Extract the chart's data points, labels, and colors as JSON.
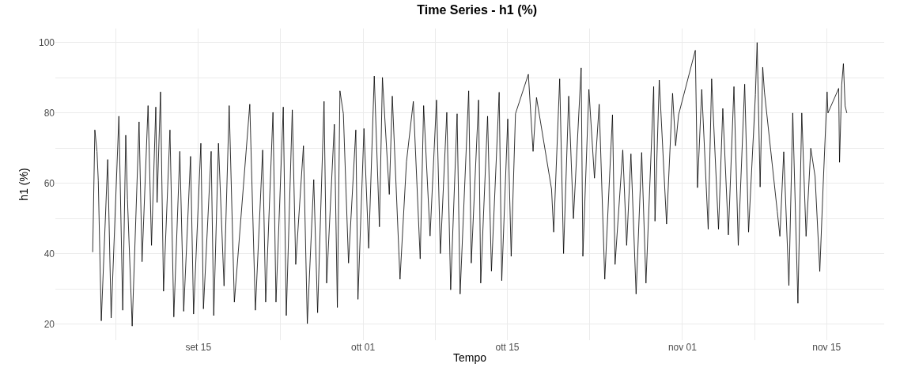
{
  "chart_data": {
    "type": "line",
    "title": "Time Series - h1 (%)",
    "xlabel": "Tempo",
    "ylabel": "h1 (%)",
    "color": "#000000",
    "grid": true,
    "xlim": [
      "--09-01T03:00",
      "--11-20T14:00"
    ],
    "xticks": [
      {
        "value": "--09-07",
        "label": null
      },
      {
        "value": "--09-15",
        "label": "set 15"
      },
      {
        "value": "--09-23",
        "label": null
      },
      {
        "value": "--10-01",
        "label": "ott 01"
      },
      {
        "value": "--10-08",
        "label": null
      },
      {
        "value": "--10-15",
        "label": "ott 15"
      },
      {
        "value": "--10-23",
        "label": null
      },
      {
        "value": "--11-01",
        "label": "nov 01"
      },
      {
        "value": "--11-08",
        "label": null
      },
      {
        "value": "--11-15",
        "label": "nov 15"
      }
    ],
    "ylim": [
      15.5,
      104
    ],
    "yticks": [
      20,
      {
        "value": 30,
        "label": null
      },
      40,
      {
        "value": 50,
        "label": null
      },
      60,
      {
        "value": 70,
        "label": null
      },
      80,
      {
        "value": 90,
        "label": null
      },
      100
    ],
    "x": [
      "--09-04T18:00",
      "--09-04T23:00",
      "--09-05T04:00",
      "--09-05T07:00",
      "--09-05T14:00",
      "--09-06T05:00",
      "--09-06T13:00",
      "--09-07T07:00",
      "--09-07T16:00",
      "--09-07T23:00",
      "--09-08T03:00",
      "--09-08T14:00",
      "--09-09T06:00",
      "--09-09T13:00",
      "--09-10T03:00",
      "--09-10T11:00",
      "--09-10T21:00",
      "--09-11T00:00",
      "--09-11T08:00",
      "--09-11T15:00",
      "--09-12T06:00",
      "--09-12T15:00",
      "--09-13T05:00",
      "--09-13T14:00",
      "--09-14T06:00",
      "--09-14T13:00",
      "--09-15T06:00",
      "--09-15T12:00",
      "--09-16T06:00",
      "--09-16T12:00",
      "--09-16T23:00",
      "--09-17T12:00",
      "--09-18T00:00",
      "--09-18T12:00",
      "--09-20T00:00",
      "--09-20T13:00",
      "--09-21T06:00",
      "--09-21T13:00",
      "--09-22T06:00",
      "--09-22T13:00",
      "--09-23T06:00",
      "--09-23T13:00",
      "--09-24T03:00",
      "--09-24T11:00",
      "--09-25T05:00",
      "--09-25T14:00",
      "--09-26T05:00",
      "--09-26T14:00",
      "--09-27T05:00",
      "--09-27T11:00",
      "--09-28T05:00",
      "--09-28T12:00",
      "--09-28T18:00",
      "--09-29T02:00",
      "--09-29T14:00",
      "--09-30T07:00",
      "--09-30T12:00",
      "--10-01T02:00",
      "--10-01T13:00",
      "--10-02T02:00",
      "--10-02T14:00",
      "--10-02T21:00",
      "--10-03T13:00",
      "--10-03T20:00",
      "--10-04T14:00",
      "--10-05T05:00",
      "--10-05T21:00",
      "--10-06T13:00",
      "--10-06T21:00",
      "--10-07T12:00",
      "--10-08T03:00",
      "--10-08T12:00",
      "--10-09T03:00",
      "--10-09T12:00",
      "--10-10T03:00",
      "--10-10T10:00",
      "--10-11T06:00",
      "--10-11T12:00",
      "--10-12T05:00",
      "--10-12T10:00",
      "--10-13T02:00",
      "--10-13T11:00",
      "--10-14T05:00",
      "--10-14T11:00",
      "--10-15T01:00",
      "--10-15T09:00",
      "--10-15T19:00",
      "--10-17T01:00",
      "--10-17T12:00",
      "--10-17T20:00",
      "--10-19T07:00",
      "--10-19T12:00",
      "--10-20T02:00",
      "--10-20T11:00",
      "--10-20T23:00",
      "--10-21T10:00",
      "--10-22T04:00",
      "--10-22T08:00",
      "--10-22T22:00",
      "--10-23T11:00",
      "--10-23T22:00",
      "--10-24T11:00",
      "--10-25T05:00",
      "--10-25T11:00",
      "--10-26T05:00",
      "--10-26T14:00",
      "--10-27T00:00",
      "--10-27T12:00",
      "--10-28T01:00",
      "--10-28T11:00",
      "--10-29T05:00",
      "--10-29T08:00",
      "--10-29T18:00",
      "--10-30T11:00",
      "--10-31T01:00",
      "--10-31T08:00",
      "--10-31T15:00",
      "--11-02T06:00",
      "--11-02T11:00",
      "--11-02T21:00",
      "--11-03T12:00",
      "--11-03T20:00",
      "--11-04T12:00",
      "--11-04T22:00",
      "--11-05T11:00",
      "--11-06T00:00",
      "--11-06T10:00",
      "--11-07T01:00",
      "--11-07T10:00",
      "--11-08T02:00",
      "--11-08T06:00",
      "--11-08T13:00",
      "--11-08T19:00",
      "--11-08T23:00",
      "--11-10T05:00",
      "--11-10T11:00",
      "--11-10T20:00",
      "--11-11T08:00",
      "--11-11T17:00",
      "--11-12T05:00",
      "--11-12T14:00",
      "--11-13T00:00",
      "--11-13T11:00",
      "--11-13T21:00",
      "--11-14T08:00",
      "--11-14T16:00",
      "--11-15T01:00",
      "--11-15T03:00",
      "--11-16T04:00",
      "--11-16T06:00",
      "--11-16T11:00",
      "--11-16T15:00",
      "--11-16T19:00",
      "--11-16T23:00"
    ],
    "values": [
      40.5,
      75.2,
      69.1,
      60.8,
      21,
      66.8,
      21.8,
      79.1,
      24,
      73.7,
      55.4,
      19.5,
      77.5,
      37.8,
      82.1,
      42.4,
      81.7,
      54.6,
      86,
      29.4,
      75.2,
      22.1,
      69.1,
      23.7,
      67.7,
      22.9,
      71.4,
      24.4,
      69.1,
      22.5,
      71.4,
      30.9,
      82.1,
      26.3,
      82.5,
      24,
      69.5,
      26.3,
      80.2,
      26.3,
      81.7,
      22.5,
      80.9,
      37,
      70.7,
      20.2,
      61.1,
      23.3,
      83.3,
      31.7,
      76.8,
      24.8,
      86.3,
      79.8,
      37.4,
      75.2,
      27.1,
      75.6,
      41.6,
      90.5,
      47.7,
      90.1,
      56.9,
      84.8,
      32.8,
      66.1,
      83.3,
      38.6,
      82.1,
      45.1,
      83.7,
      40.1,
      80.2,
      29.8,
      79.8,
      28.6,
      86.3,
      37.4,
      83.7,
      31.7,
      79.1,
      35.1,
      85.9,
      32.4,
      78.3,
      39.3,
      79.8,
      91,
      69.1,
      84.4,
      58.4,
      46.2,
      89.7,
      40.1,
      84.8,
      50,
      92.8,
      39.3,
      86.7,
      61.5,
      82.5,
      32.8,
      79.5,
      37,
      69.5,
      42.4,
      68.4,
      28.6,
      68.8,
      31.7,
      87.5,
      49.3,
      89.4,
      48.5,
      85.6,
      70.7,
      79.5,
      97.8,
      58.8,
      86.7,
      47,
      89.7,
      47,
      81.3,
      45.4,
      87.5,
      42.4,
      88.2,
      46.2,
      85.2,
      100,
      59,
      93,
      86,
      52,
      45,
      69,
      31,
      80,
      26,
      80,
      45,
      70,
      62,
      35,
      60,
      86,
      80,
      87,
      66,
      88,
      94,
      82,
      80
    ]
  }
}
